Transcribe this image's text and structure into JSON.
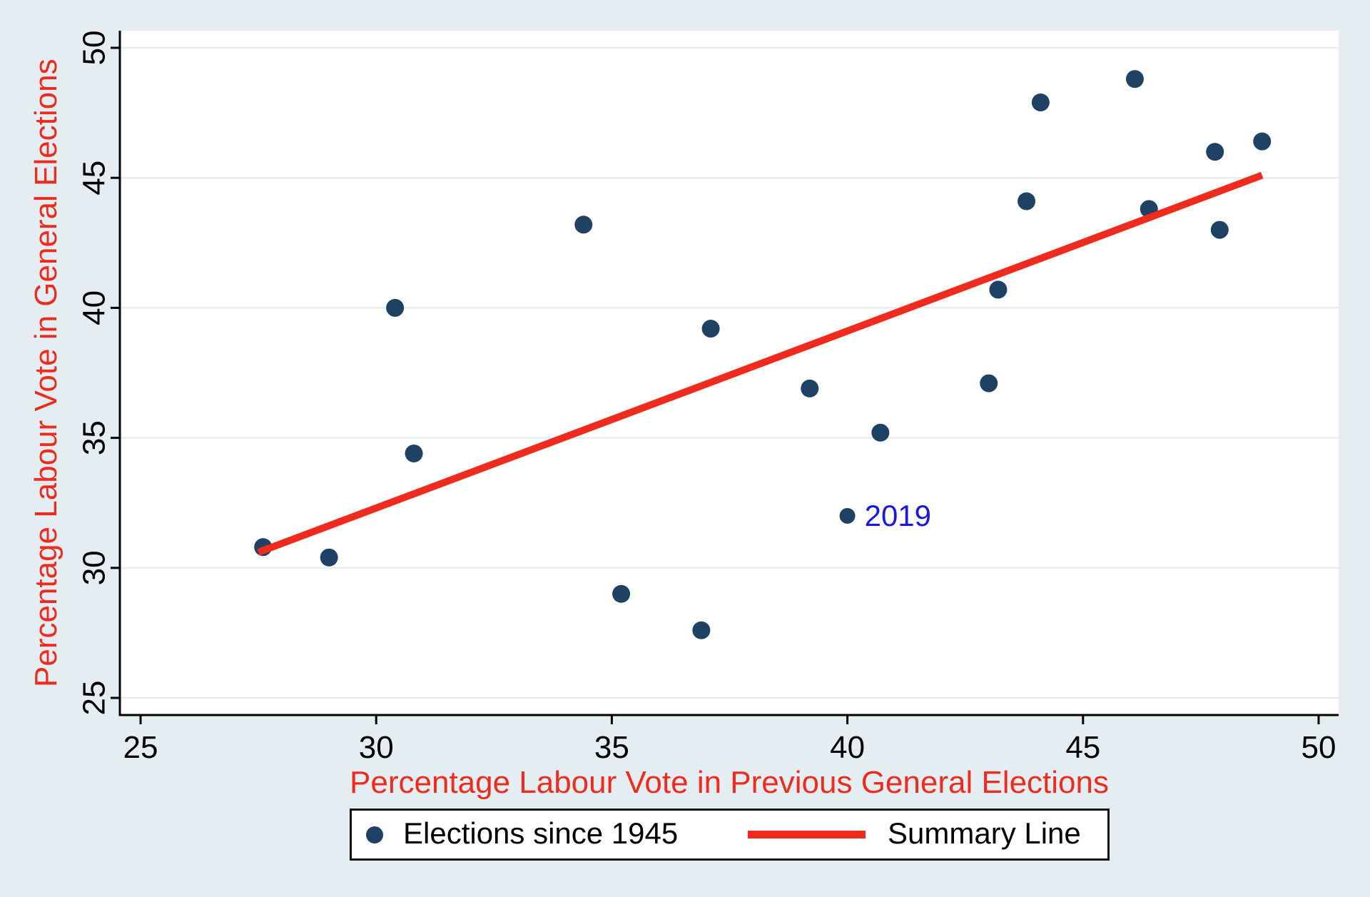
{
  "figure": {
    "background_color": "#e4eef2",
    "plot_background": "#ffffff",
    "grid_color": "#deebf2",
    "axis_color": "#000000",
    "tick_label_color": "#000000"
  },
  "chart_data": {
    "type": "scatter",
    "title": "",
    "xlabel": "Percentage Labour Vote in Previous General Elections",
    "ylabel": "Percentage Labour Vote in General Elections",
    "axis_label_color": "#ee2b1d",
    "xlim": [
      25,
      50
    ],
    "ylim": [
      25,
      50
    ],
    "xticks": [
      25,
      30,
      35,
      40,
      45,
      50
    ],
    "yticks": [
      25,
      30,
      35,
      40,
      45,
      50
    ],
    "grid": "horizontal",
    "legend_position": "bottom-center",
    "series": [
      {
        "name": "Elections since 1945",
        "type": "scatter",
        "color": "#1e4164",
        "points": [
          [
            27.6,
            30.8
          ],
          [
            29.0,
            30.4
          ],
          [
            30.4,
            40.0
          ],
          [
            30.8,
            34.4
          ],
          [
            34.4,
            43.2
          ],
          [
            35.2,
            29.0
          ],
          [
            36.9,
            27.6
          ],
          [
            37.1,
            39.2
          ],
          [
            39.2,
            36.9
          ],
          [
            40.0,
            32.0
          ],
          [
            40.7,
            35.2
          ],
          [
            43.0,
            37.1
          ],
          [
            43.2,
            40.7
          ],
          [
            43.8,
            44.1
          ],
          [
            44.1,
            47.9
          ],
          [
            46.1,
            48.8
          ],
          [
            46.4,
            43.8
          ],
          [
            47.8,
            46.0
          ],
          [
            47.9,
            43.0
          ],
          [
            48.8,
            46.4
          ]
        ]
      },
      {
        "name": "Summary Line",
        "type": "line",
        "color": "#ef2b1e",
        "points": [
          [
            27.5,
            30.6
          ],
          [
            48.8,
            45.1
          ]
        ]
      }
    ],
    "annotations": [
      {
        "text": "2019",
        "x": 40.0,
        "y": 32.0,
        "color": "#1717e8"
      }
    ]
  },
  "legend": {
    "items": [
      {
        "label": "Elections since 1945",
        "marker": "dot",
        "color": "#1e4164"
      },
      {
        "label": "Summary Line",
        "marker": "line",
        "color": "#ef2b1e"
      }
    ]
  }
}
